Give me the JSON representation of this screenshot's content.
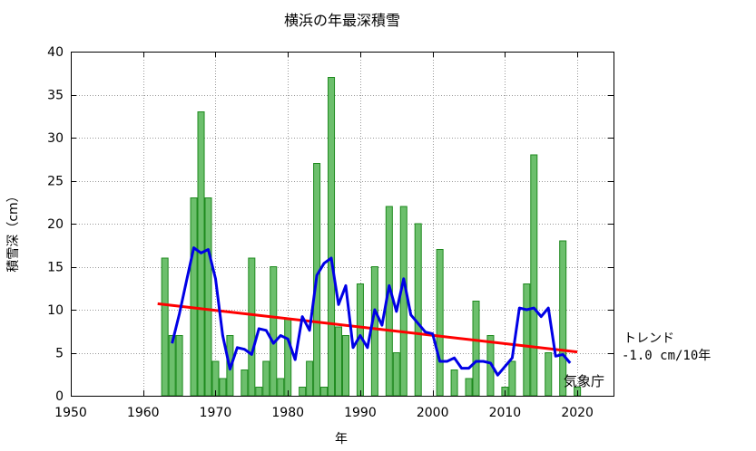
{
  "chart_data": {
    "type": "bar",
    "title": "横浜の年最深積雪",
    "xlabel": "年",
    "ylabel": "積雪深（cm）",
    "xlim": [
      1950,
      2025
    ],
    "ylim": [
      0,
      40
    ],
    "xticks": [
      1950,
      1960,
      1970,
      1980,
      1990,
      2000,
      2010,
      2020
    ],
    "yticks": [
      0,
      5,
      10,
      15,
      20,
      25,
      30,
      35,
      40
    ],
    "grid": true,
    "series": [
      {
        "kind": "bar",
        "color": "#6cbf6c",
        "edge_color": "#1e8a1e",
        "x": [
          1963,
          1964,
          1965,
          1966,
          1967,
          1968,
          1969,
          1970,
          1971,
          1972,
          1973,
          1974,
          1975,
          1976,
          1977,
          1978,
          1979,
          1980,
          1981,
          1982,
          1983,
          1984,
          1985,
          1986,
          1987,
          1988,
          1989,
          1990,
          1991,
          1992,
          1993,
          1994,
          1995,
          1996,
          1997,
          1998,
          1999,
          2000,
          2001,
          2002,
          2003,
          2004,
          2005,
          2006,
          2007,
          2008,
          2009,
          2010,
          2011,
          2012,
          2013,
          2014,
          2015,
          2016,
          2017,
          2018,
          2019,
          2020
        ],
        "values": [
          16,
          7,
          7,
          0,
          23,
          33,
          23,
          4,
          2,
          7,
          0,
          3,
          16,
          1,
          4,
          15,
          2,
          9,
          0,
          1,
          4,
          27,
          1,
          37,
          8,
          7,
          0,
          13,
          0,
          15,
          0,
          22,
          5,
          22,
          0,
          20,
          0,
          0,
          17,
          0,
          3,
          0,
          2,
          11,
          0,
          7,
          0,
          1,
          4,
          0,
          13,
          28,
          0,
          5,
          0,
          18,
          0,
          1
        ]
      },
      {
        "kind": "line",
        "color": "#0000e6",
        "x": [
          1964,
          1965,
          1966,
          1967,
          1968,
          1969,
          1970,
          1971,
          1972,
          1973,
          1974,
          1975,
          1976,
          1977,
          1978,
          1979,
          1980,
          1981,
          1982,
          1983,
          1984,
          1985,
          1986,
          1987,
          1988,
          1989,
          1990,
          1991,
          1992,
          1993,
          1994,
          1995,
          1996,
          1997,
          1998,
          1999,
          2000,
          2001,
          2002,
          2003,
          2004,
          2005,
          2006,
          2007,
          2008,
          2009,
          2010,
          2011,
          2012,
          2013,
          2014,
          2015,
          2016,
          2017,
          2018,
          2019
        ],
        "values": [
          6.1,
          9.5,
          13.4,
          17.2,
          16.6,
          17.0,
          13.6,
          7.0,
          3.1,
          5.6,
          5.4,
          4.8,
          7.8,
          7.6,
          6.1,
          7.0,
          6.6,
          4.2,
          9.2,
          7.6,
          14.0,
          15.4,
          16.0,
          10.6,
          12.8,
          5.6,
          7.0,
          5.6,
          10.0,
          8.2,
          12.8,
          9.8,
          13.6,
          9.4,
          8.4,
          7.4,
          7.2,
          4.0,
          4.0,
          4.4,
          3.2,
          3.2,
          4.0,
          4.0,
          3.8,
          2.4,
          3.4,
          4.4,
          10.2,
          10.0,
          10.2,
          9.2,
          10.2,
          4.6,
          4.8,
          3.8
        ]
      },
      {
        "kind": "trend",
        "color": "#ff0000",
        "x": [
          1962,
          2020
        ],
        "values": [
          10.7,
          5.1
        ]
      }
    ],
    "annotations": {
      "trend_label": "トレンド",
      "trend_value": "-1.0 cm/10年",
      "credit": "気象庁"
    }
  }
}
